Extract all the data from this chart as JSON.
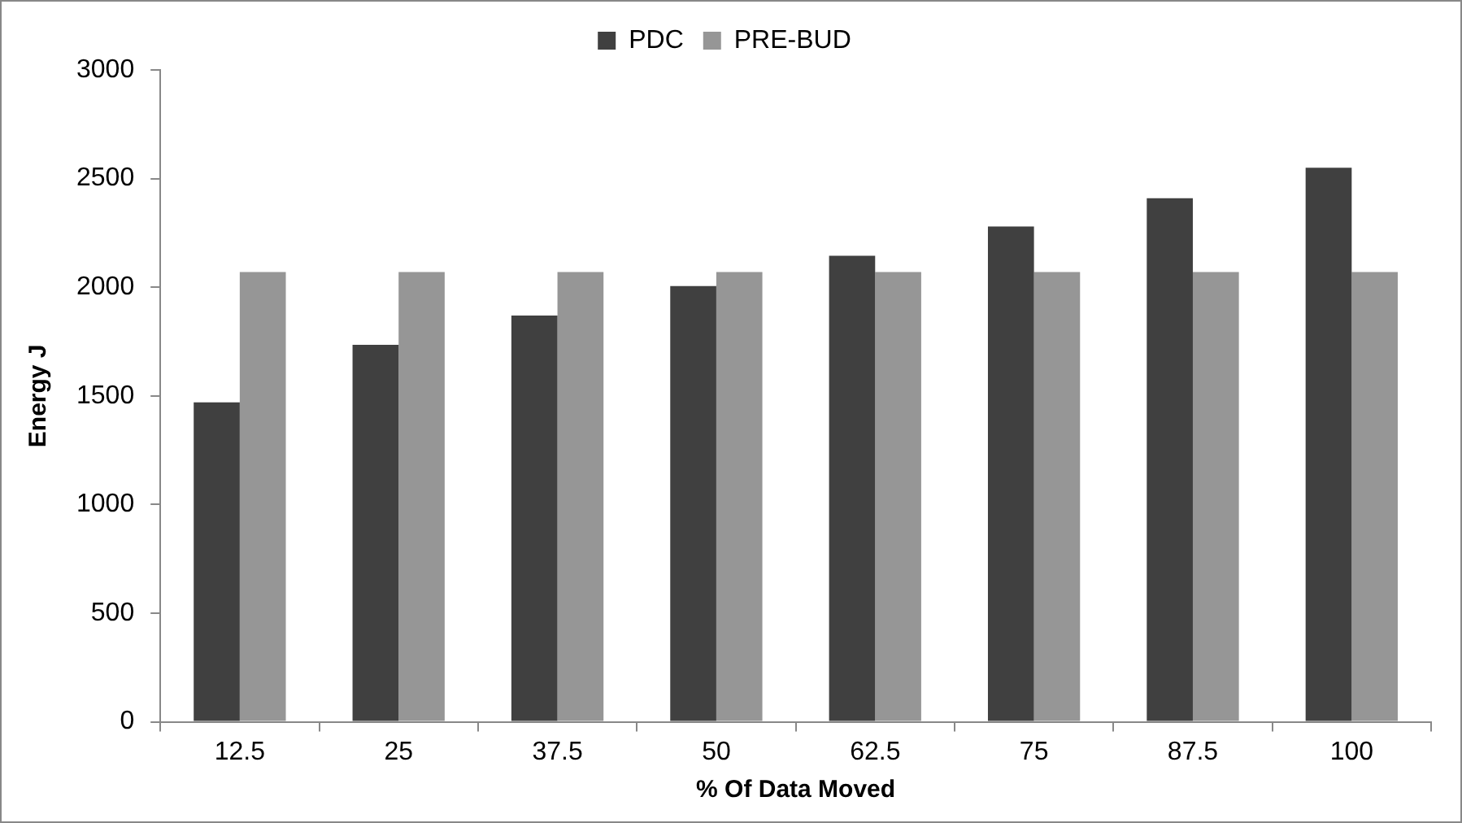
{
  "chart_data": {
    "type": "bar",
    "xlabel": "% Of Data Moved",
    "ylabel": "Energy J",
    "categories": [
      "12.5",
      "25",
      "37.5",
      "50",
      "62.5",
      "75",
      "87.5",
      "100"
    ],
    "series": [
      {
        "name": "PDC",
        "color": "#404040",
        "values": [
          1470,
          1735,
          1870,
          2005,
          2145,
          2280,
          2410,
          2550
        ]
      },
      {
        "name": "PRE-BUD",
        "color": "#969696",
        "values": [
          2070,
          2070,
          2070,
          2070,
          2070,
          2070,
          2070,
          2070
        ]
      }
    ],
    "ylim": [
      0,
      3000
    ],
    "yticks": [
      0,
      500,
      1000,
      1500,
      2000,
      2500,
      3000
    ],
    "grid": false,
    "legend": "top"
  }
}
